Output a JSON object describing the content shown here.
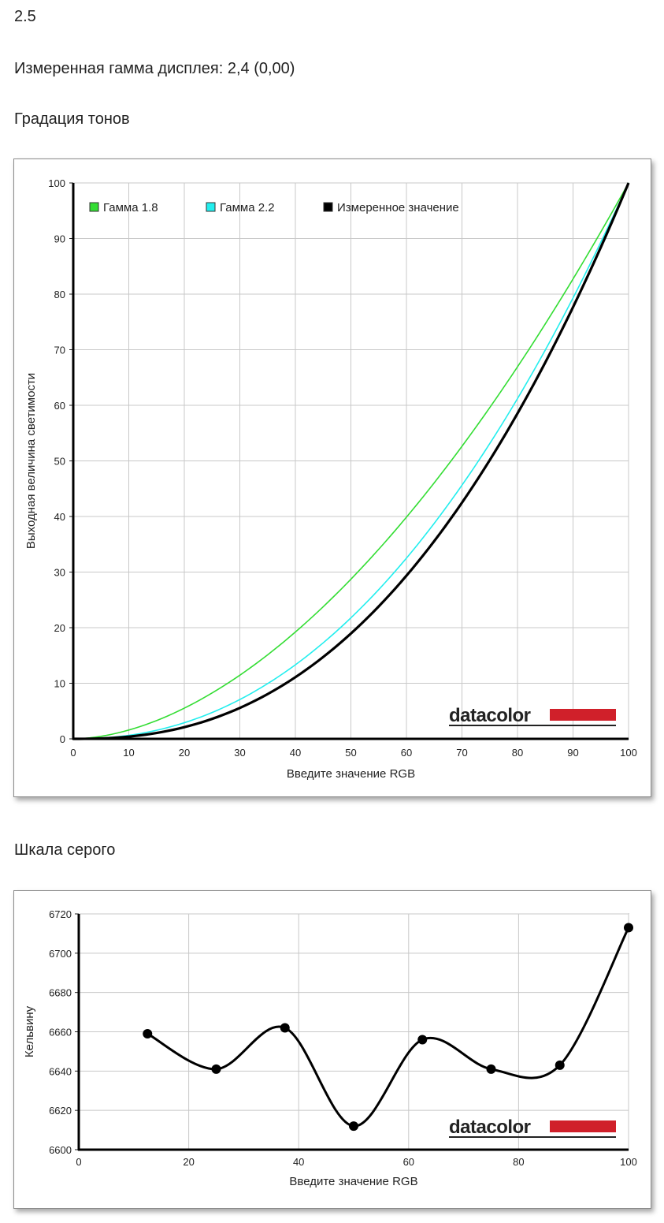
{
  "header_value": "2.5",
  "measured_gamma_line": "Измеренная гамма дисплея: 2,4 (0,00)",
  "sections": {
    "tone": "Градация тонов",
    "gray": "Шкала серого"
  },
  "logo_text": "datacolor",
  "colors": {
    "gamma18": "#33dd33",
    "gamma22": "#22eeee",
    "measured": "#000000",
    "logo_red": "#d0202a",
    "grid": "#c8c8c8"
  },
  "chart_data": [
    {
      "type": "line",
      "xlabel": "Введите значение RGB",
      "ylabel": "Выходная величина светимости",
      "xlim": [
        0,
        100
      ],
      "ylim": [
        0,
        100
      ],
      "xticks": [
        0,
        10,
        20,
        30,
        40,
        50,
        60,
        70,
        80,
        90,
        100
      ],
      "yticks": [
        0,
        10,
        20,
        30,
        40,
        50,
        60,
        70,
        80,
        90,
        100
      ],
      "grid": true,
      "legend_position": "top-left",
      "series": [
        {
          "name": "Гамма 1.8",
          "gamma": 1.8,
          "color": "#33dd33"
        },
        {
          "name": "Гамма 2.2",
          "gamma": 2.2,
          "color": "#22eeee"
        },
        {
          "name": "Измеренное значение",
          "gamma": 2.4,
          "color": "#000000"
        }
      ]
    },
    {
      "type": "line",
      "xlabel": "Введите значение RGB",
      "ylabel": "Кельвину",
      "xlim": [
        0,
        100
      ],
      "ylim": [
        6600,
        6720
      ],
      "xticks": [
        0,
        20,
        40,
        60,
        80,
        100
      ],
      "yticks": [
        6600,
        6620,
        6640,
        6660,
        6680,
        6700,
        6720
      ],
      "grid": true,
      "x": [
        12.5,
        25,
        37.5,
        50,
        62.5,
        75,
        87.5,
        100
      ],
      "y": [
        6659,
        6641,
        6662,
        6612,
        6656,
        6641,
        6643,
        6713
      ]
    }
  ]
}
